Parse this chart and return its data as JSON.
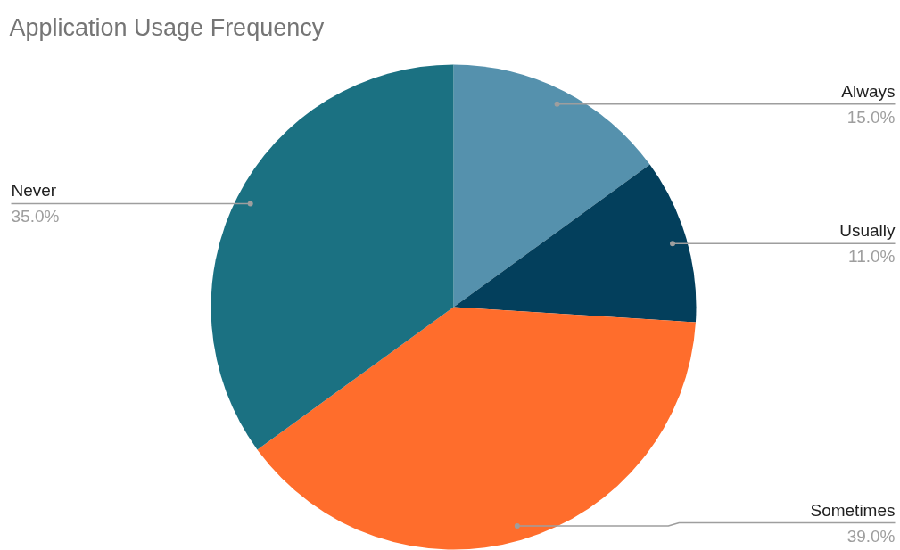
{
  "chart_data": {
    "type": "pie",
    "title": "Application Usage Frequency",
    "categories": [
      "Always",
      "Usually",
      "Sometimes",
      "Never"
    ],
    "values": [
      15,
      11,
      39,
      35
    ],
    "value_labels": [
      "15.0%",
      "11.0%",
      "39.0%",
      "35.0%"
    ],
    "colors": [
      "#5591ad",
      "#033f5c",
      "#ff6d2c",
      "#1b7182"
    ]
  }
}
